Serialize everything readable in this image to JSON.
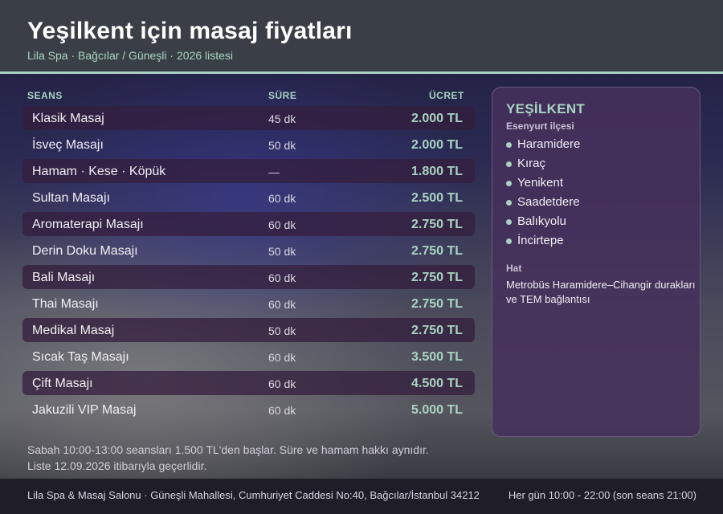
{
  "header": {
    "title": "Yeşilkent için masaj fiyatları",
    "subtitle": "Lila Spa · Bağcılar / Güneşli · 2026 listesi"
  },
  "table": {
    "columns": {
      "session": "SEANS",
      "duration": "SÜRE",
      "price": "ÜCRET"
    },
    "rows": [
      {
        "name": "Klasik Masaj",
        "duration": "45 dk",
        "price": "2.000 TL"
      },
      {
        "name": "İsveç Masajı",
        "duration": "50 dk",
        "price": "2.000 TL"
      },
      {
        "name": "Hamam · Kese · Köpük",
        "duration": "—",
        "price": "1.800 TL"
      },
      {
        "name": "Sultan Masajı",
        "duration": "60 dk",
        "price": "2.500 TL"
      },
      {
        "name": "Aromaterapi Masajı",
        "duration": "60 dk",
        "price": "2.750 TL"
      },
      {
        "name": "Derin Doku Masajı",
        "duration": "50 dk",
        "price": "2.750 TL"
      },
      {
        "name": "Bali Masajı",
        "duration": "60 dk",
        "price": "2.750 TL"
      },
      {
        "name": "Thai Masajı",
        "duration": "60 dk",
        "price": "2.750 TL"
      },
      {
        "name": "Medikal Masaj",
        "duration": "50 dk",
        "price": "2.750 TL"
      },
      {
        "name": "Sıcak Taş Masajı",
        "duration": "60 dk",
        "price": "3.500 TL"
      },
      {
        "name": "Çift Masajı",
        "duration": "60 dk",
        "price": "4.500 TL"
      },
      {
        "name": "Jakuzili VIP Masaj",
        "duration": "60 dk",
        "price": "5.000 TL"
      }
    ]
  },
  "sidebar": {
    "title": "YEŞİLKENT",
    "subtitle": "Esenyurt ilçesi",
    "neighborhoods": [
      "Haramidere",
      "Kıraç",
      "Yenikent",
      "Saadetdere",
      "Balıkyolu",
      "İncirtepe"
    ],
    "transport_label": "Hat",
    "transport_text": "Metrobüs Haramidere–Cihangir durakları ve TEM bağlantısı"
  },
  "notes": {
    "line1": "Sabah 10:00-13:00 seansları 1.500 TL'den başlar. Süre ve hamam hakkı aynıdır.",
    "line2": "Liste 12.09.2026 itibarıyla geçerlidir."
  },
  "footer": {
    "address": "Lila Spa & Masaj Salonu · Güneşli Mahallesi, Cumhuriyet Caddesi No:40, Bağcılar/İstanbul 34212",
    "hours": "Her gün 10:00 - 22:00 (son seans 21:00)"
  },
  "colors": {
    "accent": "#a8d4c2",
    "header_bg": "#3a3f47",
    "panel_bg": "#46305c",
    "footer_bg": "#1e1d28"
  }
}
